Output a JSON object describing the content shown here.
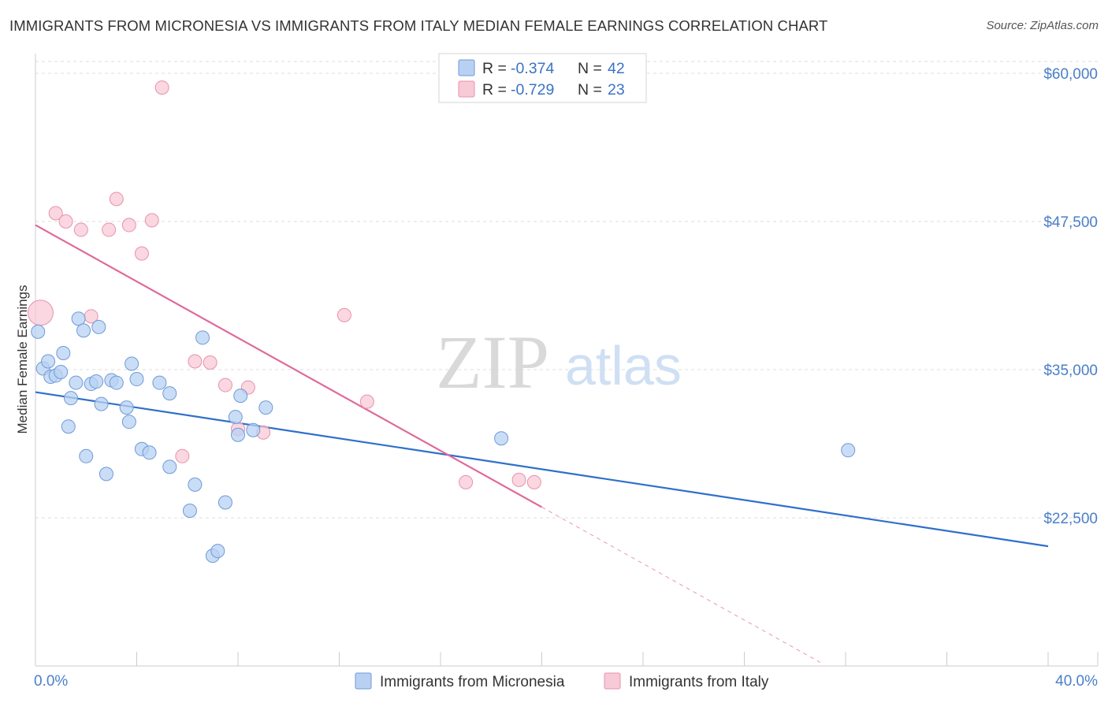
{
  "title": "IMMIGRANTS FROM MICRONESIA VS IMMIGRANTS FROM ITALY MEDIAN FEMALE EARNINGS CORRELATION CHART",
  "source": "Source: ZipAtlas.com",
  "watermark": {
    "zip": "ZIP",
    "atlas": "atlas"
  },
  "colors": {
    "micronesia_fill": "#b8d1f3",
    "micronesia_stroke": "#6e9ad6",
    "micronesia_line": "#2f6fcc",
    "italy_fill": "#f8c9d7",
    "italy_stroke": "#e892ac",
    "italy_line": "#e0699a",
    "grid": "#dddddd",
    "axis_text": "#4a7fc9"
  },
  "legend": {
    "micronesia": {
      "r_label": "R = ",
      "r_value": "-0.374",
      "n_label": "N = ",
      "n_value": "42"
    },
    "italy": {
      "r_label": "R = ",
      "r_value": "-0.729",
      "n_label": "N = ",
      "n_value": "23"
    }
  },
  "chart_data": {
    "type": "scatter",
    "title": "IMMIGRANTS FROM MICRONESIA VS IMMIGRANTS FROM ITALY MEDIAN FEMALE EARNINGS CORRELATION CHART",
    "xlabel": "",
    "ylabel": "Median Female Earnings",
    "xlim": [
      0,
      40
    ],
    "ylim": [
      10000,
      61000
    ],
    "x_tick_labels": [
      "0.0%",
      "40.0%"
    ],
    "y_ticks": [
      22500,
      35000,
      47500,
      60000
    ],
    "y_tick_labels": [
      "$22,500",
      "$35,000",
      "$47,500",
      "$60,000"
    ],
    "legend_position": "bottom",
    "series": [
      {
        "name": "Immigrants from Micronesia",
        "points": [
          {
            "x": 0.1,
            "y": 38200
          },
          {
            "x": 0.3,
            "y": 35100
          },
          {
            "x": 0.5,
            "y": 35700
          },
          {
            "x": 0.6,
            "y": 34400
          },
          {
            "x": 0.8,
            "y": 34500
          },
          {
            "x": 1.0,
            "y": 34800
          },
          {
            "x": 1.1,
            "y": 36400
          },
          {
            "x": 1.3,
            "y": 30200
          },
          {
            "x": 1.4,
            "y": 32600
          },
          {
            "x": 1.6,
            "y": 33900
          },
          {
            "x": 1.7,
            "y": 39300
          },
          {
            "x": 1.9,
            "y": 38300
          },
          {
            "x": 2.0,
            "y": 27700
          },
          {
            "x": 2.2,
            "y": 33800
          },
          {
            "x": 2.4,
            "y": 34000
          },
          {
            "x": 2.5,
            "y": 38600
          },
          {
            "x": 2.6,
            "y": 32100
          },
          {
            "x": 2.8,
            "y": 26200
          },
          {
            "x": 3.0,
            "y": 34100
          },
          {
            "x": 3.2,
            "y": 33900
          },
          {
            "x": 3.6,
            "y": 31800
          },
          {
            "x": 3.7,
            "y": 30600
          },
          {
            "x": 3.8,
            "y": 35500
          },
          {
            "x": 4.0,
            "y": 34200
          },
          {
            "x": 4.2,
            "y": 28300
          },
          {
            "x": 4.5,
            "y": 28000
          },
          {
            "x": 4.9,
            "y": 33900
          },
          {
            "x": 5.3,
            "y": 26800
          },
          {
            "x": 5.3,
            "y": 33000
          },
          {
            "x": 6.1,
            "y": 23100
          },
          {
            "x": 6.3,
            "y": 25300
          },
          {
            "x": 6.6,
            "y": 37700
          },
          {
            "x": 7.0,
            "y": 19300
          },
          {
            "x": 7.2,
            "y": 19700
          },
          {
            "x": 7.5,
            "y": 23800
          },
          {
            "x": 7.9,
            "y": 31000
          },
          {
            "x": 8.0,
            "y": 29500
          },
          {
            "x": 8.1,
            "y": 32800
          },
          {
            "x": 8.6,
            "y": 29900
          },
          {
            "x": 9.1,
            "y": 31800
          },
          {
            "x": 18.4,
            "y": 29200
          },
          {
            "x": 32.1,
            "y": 28200
          }
        ],
        "trendline": {
          "x": [
            0,
            40
          ],
          "y": [
            33100,
            20100
          ]
        }
      },
      {
        "name": "Immigrants from Italy",
        "points": [
          {
            "x": 0.2,
            "y": 39800
          },
          {
            "x": 0.8,
            "y": 48200
          },
          {
            "x": 1.2,
            "y": 47500
          },
          {
            "x": 1.8,
            "y": 46800
          },
          {
            "x": 2.2,
            "y": 39500
          },
          {
            "x": 2.9,
            "y": 46800
          },
          {
            "x": 3.2,
            "y": 49400
          },
          {
            "x": 3.7,
            "y": 47200
          },
          {
            "x": 4.2,
            "y": 44800
          },
          {
            "x": 4.6,
            "y": 47600
          },
          {
            "x": 5.0,
            "y": 58800
          },
          {
            "x": 5.8,
            "y": 27700
          },
          {
            "x": 6.3,
            "y": 35700
          },
          {
            "x": 6.9,
            "y": 35600
          },
          {
            "x": 7.5,
            "y": 33700
          },
          {
            "x": 8.0,
            "y": 30000
          },
          {
            "x": 8.4,
            "y": 33500
          },
          {
            "x": 9.0,
            "y": 29700
          },
          {
            "x": 12.2,
            "y": 39600
          },
          {
            "x": 13.1,
            "y": 32300
          },
          {
            "x": 17.0,
            "y": 25500
          },
          {
            "x": 19.1,
            "y": 25700
          },
          {
            "x": 19.7,
            "y": 25500
          }
        ],
        "trendline": {
          "x": [
            0,
            20
          ],
          "y": [
            47200,
            23400
          ]
        },
        "trendline_dashed_extension": {
          "x": [
            20,
            31
          ],
          "y": [
            23400,
            10300
          ]
        }
      }
    ]
  },
  "bottom_legend": [
    {
      "label": "Immigrants from Micronesia"
    },
    {
      "label": "Immigrants from Italy"
    }
  ]
}
